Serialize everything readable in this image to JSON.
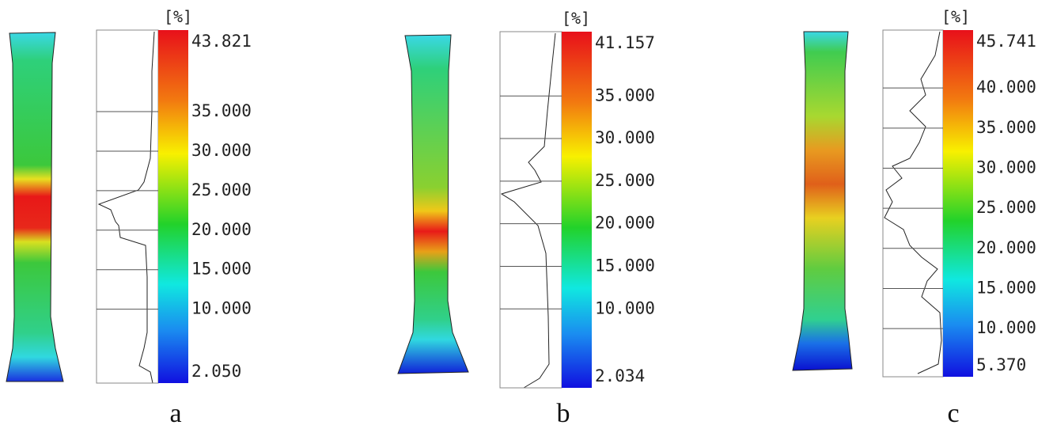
{
  "panels": [
    {
      "label": "a",
      "unit": "[%]",
      "ticks": [
        {
          "value": 43.821,
          "label": "43.821"
        },
        {
          "value": 35,
          "label": "35.000"
        },
        {
          "value": 30,
          "label": "30.000"
        },
        {
          "value": 25,
          "label": "25.000"
        },
        {
          "value": 20,
          "label": "20.000"
        },
        {
          "value": 15,
          "label": "15.000"
        },
        {
          "value": 10,
          "label": "10.000"
        },
        {
          "value": 2.05,
          "label": "2.050"
        }
      ]
    },
    {
      "label": "b",
      "unit": "[%]",
      "ticks": [
        {
          "value": 41.157,
          "label": "41.157"
        },
        {
          "value": 35,
          "label": "35.000"
        },
        {
          "value": 30,
          "label": "30.000"
        },
        {
          "value": 25,
          "label": "25.000"
        },
        {
          "value": 20,
          "label": "20.000"
        },
        {
          "value": 15,
          "label": "15.000"
        },
        {
          "value": 10,
          "label": "10.000"
        },
        {
          "value": 2.034,
          "label": "2.034"
        }
      ]
    },
    {
      "label": "c",
      "unit": "[%]",
      "ticks": [
        {
          "value": 45.741,
          "label": "45.741"
        },
        {
          "value": 40,
          "label": "40.000"
        },
        {
          "value": 35,
          "label": "35.000"
        },
        {
          "value": 30,
          "label": "30.000"
        },
        {
          "value": 25,
          "label": "25.000"
        },
        {
          "value": 20,
          "label": "20.000"
        },
        {
          "value": 15,
          "label": "15.000"
        },
        {
          "value": 10,
          "label": "10.000"
        },
        {
          "value": 5.37,
          "label": "5.370"
        }
      ]
    }
  ]
}
